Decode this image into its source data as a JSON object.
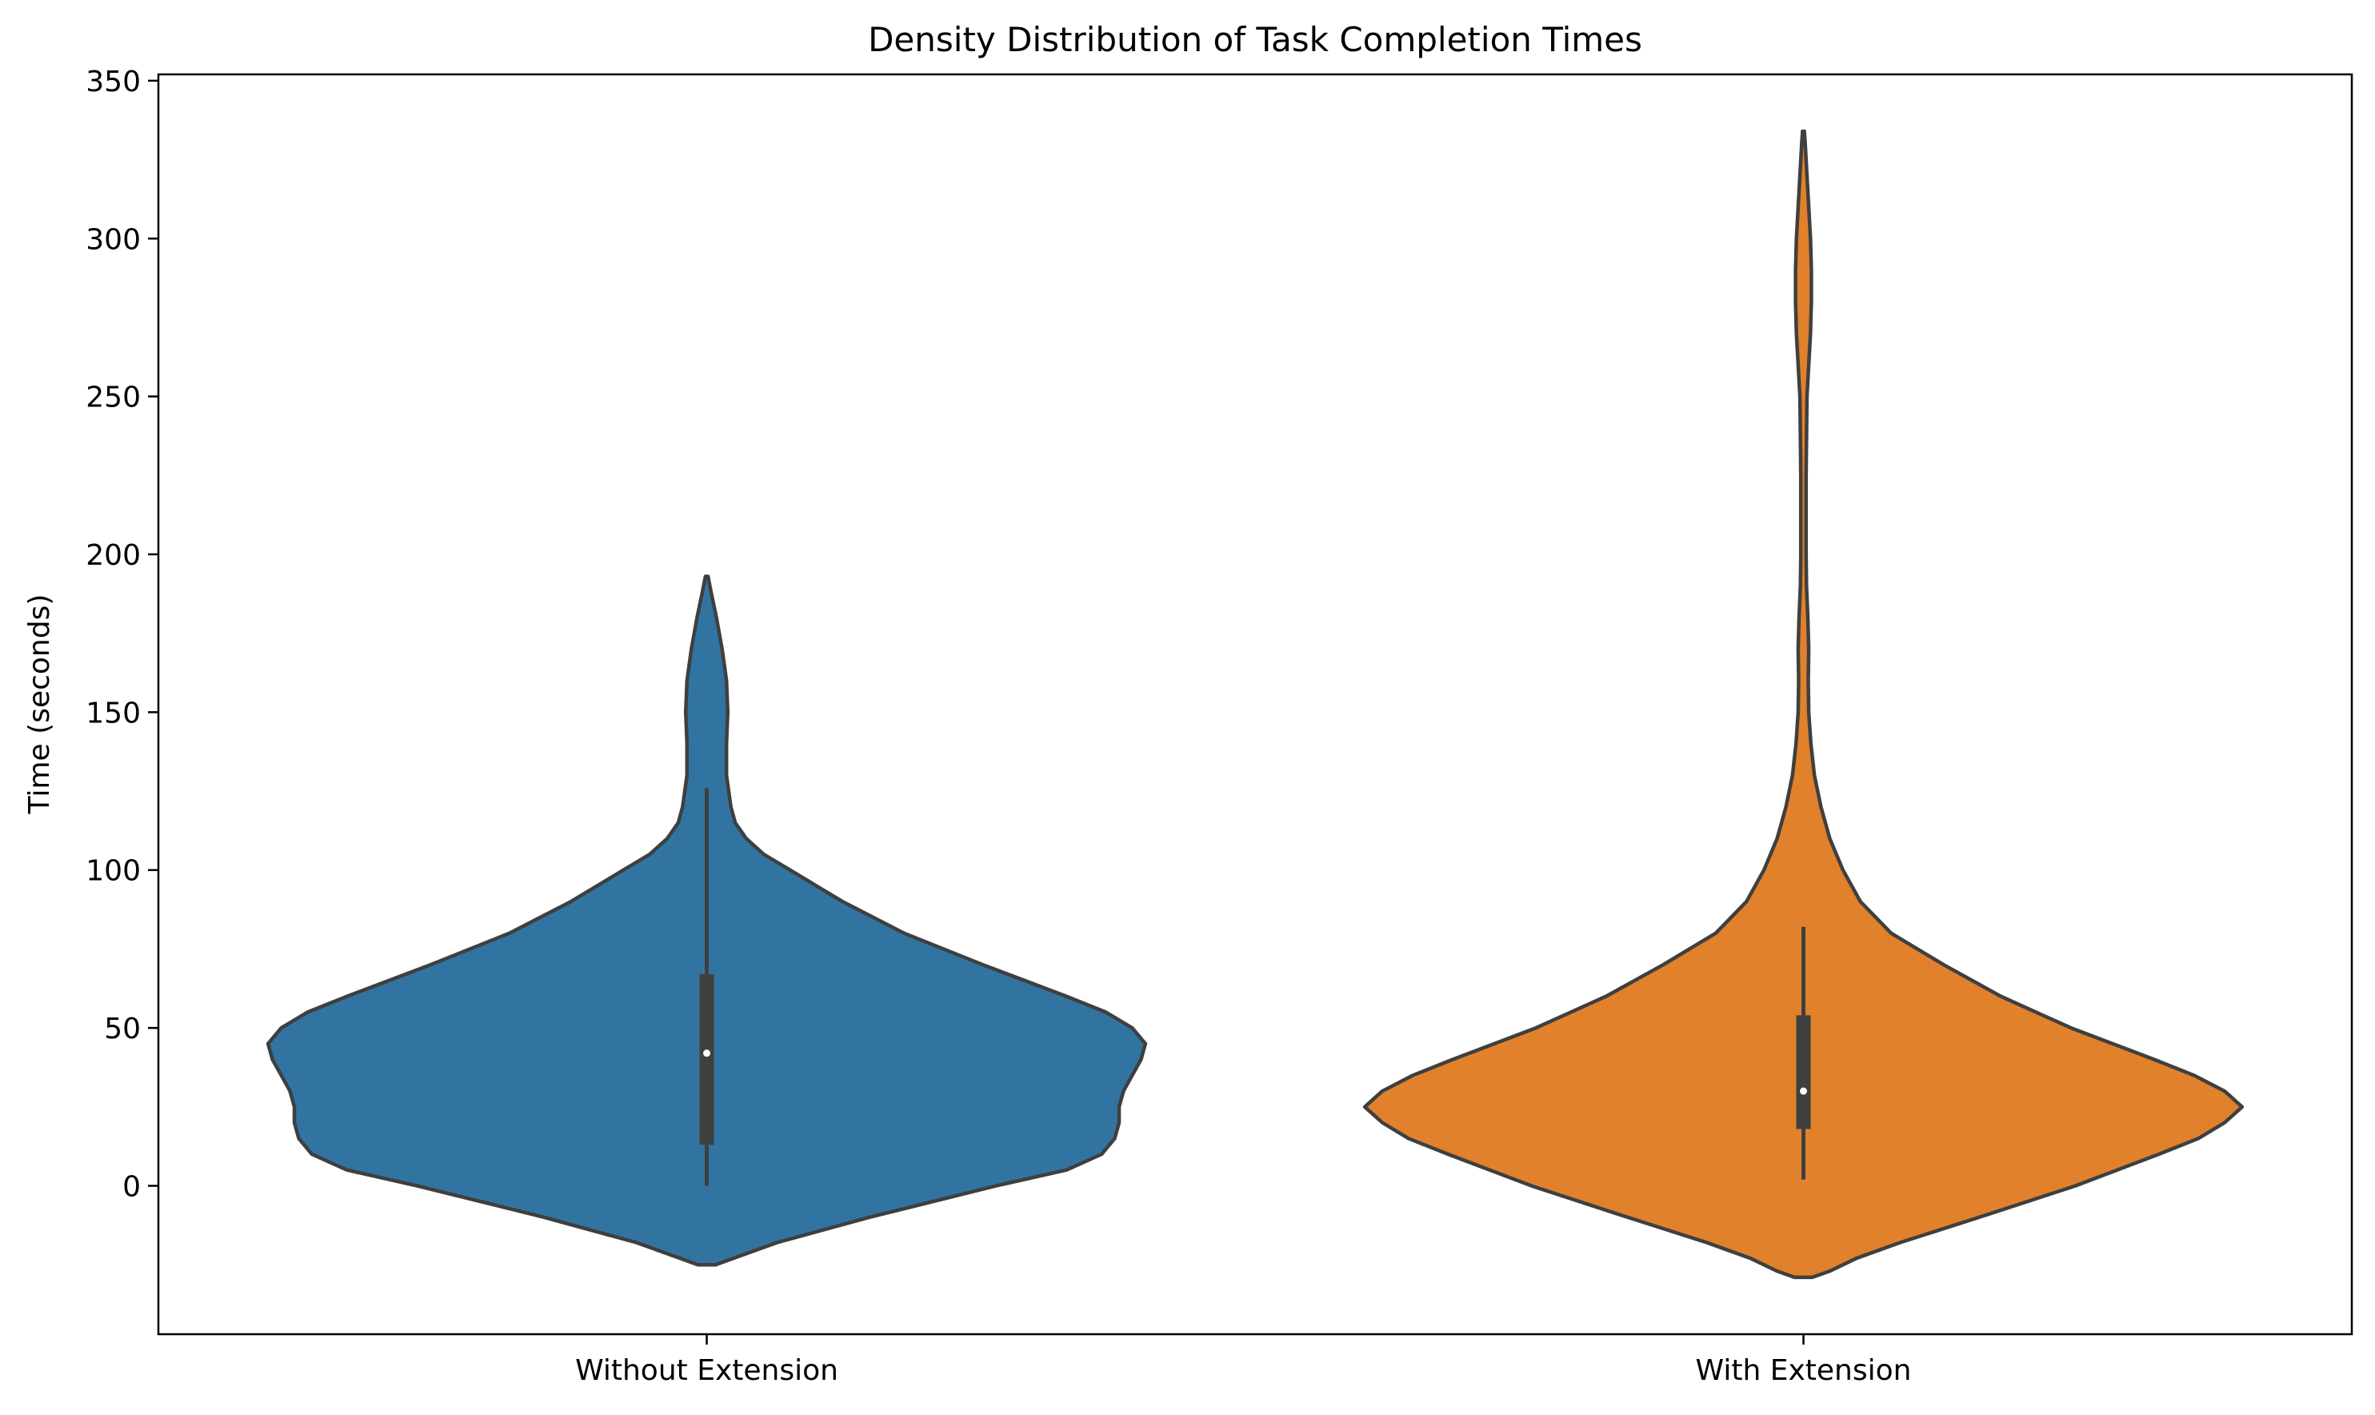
{
  "chart_data": {
    "type": "violin",
    "title": "Density Distribution of Task Completion Times",
    "xlabel": "",
    "ylabel": "Time (seconds)",
    "categories": [
      "Without Extension",
      "With Extension"
    ],
    "ylim": [
      -47,
      352
    ],
    "yticks": [
      0,
      50,
      100,
      150,
      200,
      250,
      300,
      350
    ],
    "grid": false,
    "legend": "none",
    "series": [
      {
        "category": "Without Extension",
        "color": "#3274a1",
        "range": [
          -25,
          193
        ],
        "quartiles": {
          "q1": 13,
          "median": 42,
          "q3": 67
        },
        "whiskers": [
          0,
          126
        ],
        "density_profile": [
          {
            "y": -25,
            "width": 0.02
          },
          {
            "y": -23,
            "width": 0.06
          },
          {
            "y": -18,
            "width": 0.16
          },
          {
            "y": -10,
            "width": 0.37
          },
          {
            "y": 0,
            "width": 0.66
          },
          {
            "y": 5,
            "width": 0.82
          },
          {
            "y": 10,
            "width": 0.9
          },
          {
            "y": 15,
            "width": 0.93
          },
          {
            "y": 20,
            "width": 0.94
          },
          {
            "y": 25,
            "width": 0.94
          },
          {
            "y": 30,
            "width": 0.95
          },
          {
            "y": 35,
            "width": 0.97
          },
          {
            "y": 40,
            "width": 0.99
          },
          {
            "y": 45,
            "width": 1.0
          },
          {
            "y": 50,
            "width": 0.97
          },
          {
            "y": 55,
            "width": 0.91
          },
          {
            "y": 60,
            "width": 0.82
          },
          {
            "y": 70,
            "width": 0.63
          },
          {
            "y": 80,
            "width": 0.45
          },
          {
            "y": 90,
            "width": 0.31
          },
          {
            "y": 100,
            "width": 0.19
          },
          {
            "y": 105,
            "width": 0.13
          },
          {
            "y": 110,
            "width": 0.09
          },
          {
            "y": 115,
            "width": 0.065
          },
          {
            "y": 120,
            "width": 0.055
          },
          {
            "y": 130,
            "width": 0.045
          },
          {
            "y": 140,
            "width": 0.045
          },
          {
            "y": 150,
            "width": 0.048
          },
          {
            "y": 160,
            "width": 0.045
          },
          {
            "y": 170,
            "width": 0.035
          },
          {
            "y": 180,
            "width": 0.022
          },
          {
            "y": 188,
            "width": 0.01
          },
          {
            "y": 193,
            "width": 0.003
          }
        ]
      },
      {
        "category": "With Extension",
        "color": "#e1812c",
        "range": [
          -29,
          334
        ],
        "quartiles": {
          "q1": 18,
          "median": 30,
          "q3": 54
        },
        "whiskers": [
          2,
          82
        ],
        "density_profile": [
          {
            "y": -29,
            "width": 0.02
          },
          {
            "y": -27,
            "width": 0.06
          },
          {
            "y": -23,
            "width": 0.12
          },
          {
            "y": -18,
            "width": 0.22
          },
          {
            "y": -10,
            "width": 0.4
          },
          {
            "y": 0,
            "width": 0.62
          },
          {
            "y": 10,
            "width": 0.81
          },
          {
            "y": 15,
            "width": 0.9
          },
          {
            "y": 20,
            "width": 0.96
          },
          {
            "y": 25,
            "width": 1.0
          },
          {
            "y": 30,
            "width": 0.96
          },
          {
            "y": 35,
            "width": 0.89
          },
          {
            "y": 40,
            "width": 0.8
          },
          {
            "y": 50,
            "width": 0.61
          },
          {
            "y": 60,
            "width": 0.45
          },
          {
            "y": 70,
            "width": 0.32
          },
          {
            "y": 80,
            "width": 0.2
          },
          {
            "y": 90,
            "width": 0.13
          },
          {
            "y": 100,
            "width": 0.09
          },
          {
            "y": 110,
            "width": 0.06
          },
          {
            "y": 120,
            "width": 0.04
          },
          {
            "y": 130,
            "width": 0.025
          },
          {
            "y": 140,
            "width": 0.017
          },
          {
            "y": 150,
            "width": 0.012
          },
          {
            "y": 160,
            "width": 0.011
          },
          {
            "y": 170,
            "width": 0.012
          },
          {
            "y": 180,
            "width": 0.01
          },
          {
            "y": 190,
            "width": 0.007
          },
          {
            "y": 200,
            "width": 0.006
          },
          {
            "y": 225,
            "width": 0.006
          },
          {
            "y": 250,
            "width": 0.008
          },
          {
            "y": 260,
            "width": 0.012
          },
          {
            "y": 270,
            "width": 0.016
          },
          {
            "y": 280,
            "width": 0.018
          },
          {
            "y": 290,
            "width": 0.018
          },
          {
            "y": 300,
            "width": 0.016
          },
          {
            "y": 310,
            "width": 0.012
          },
          {
            "y": 320,
            "width": 0.008
          },
          {
            "y": 330,
            "width": 0.004
          },
          {
            "y": 334,
            "width": 0.002
          }
        ]
      }
    ]
  }
}
